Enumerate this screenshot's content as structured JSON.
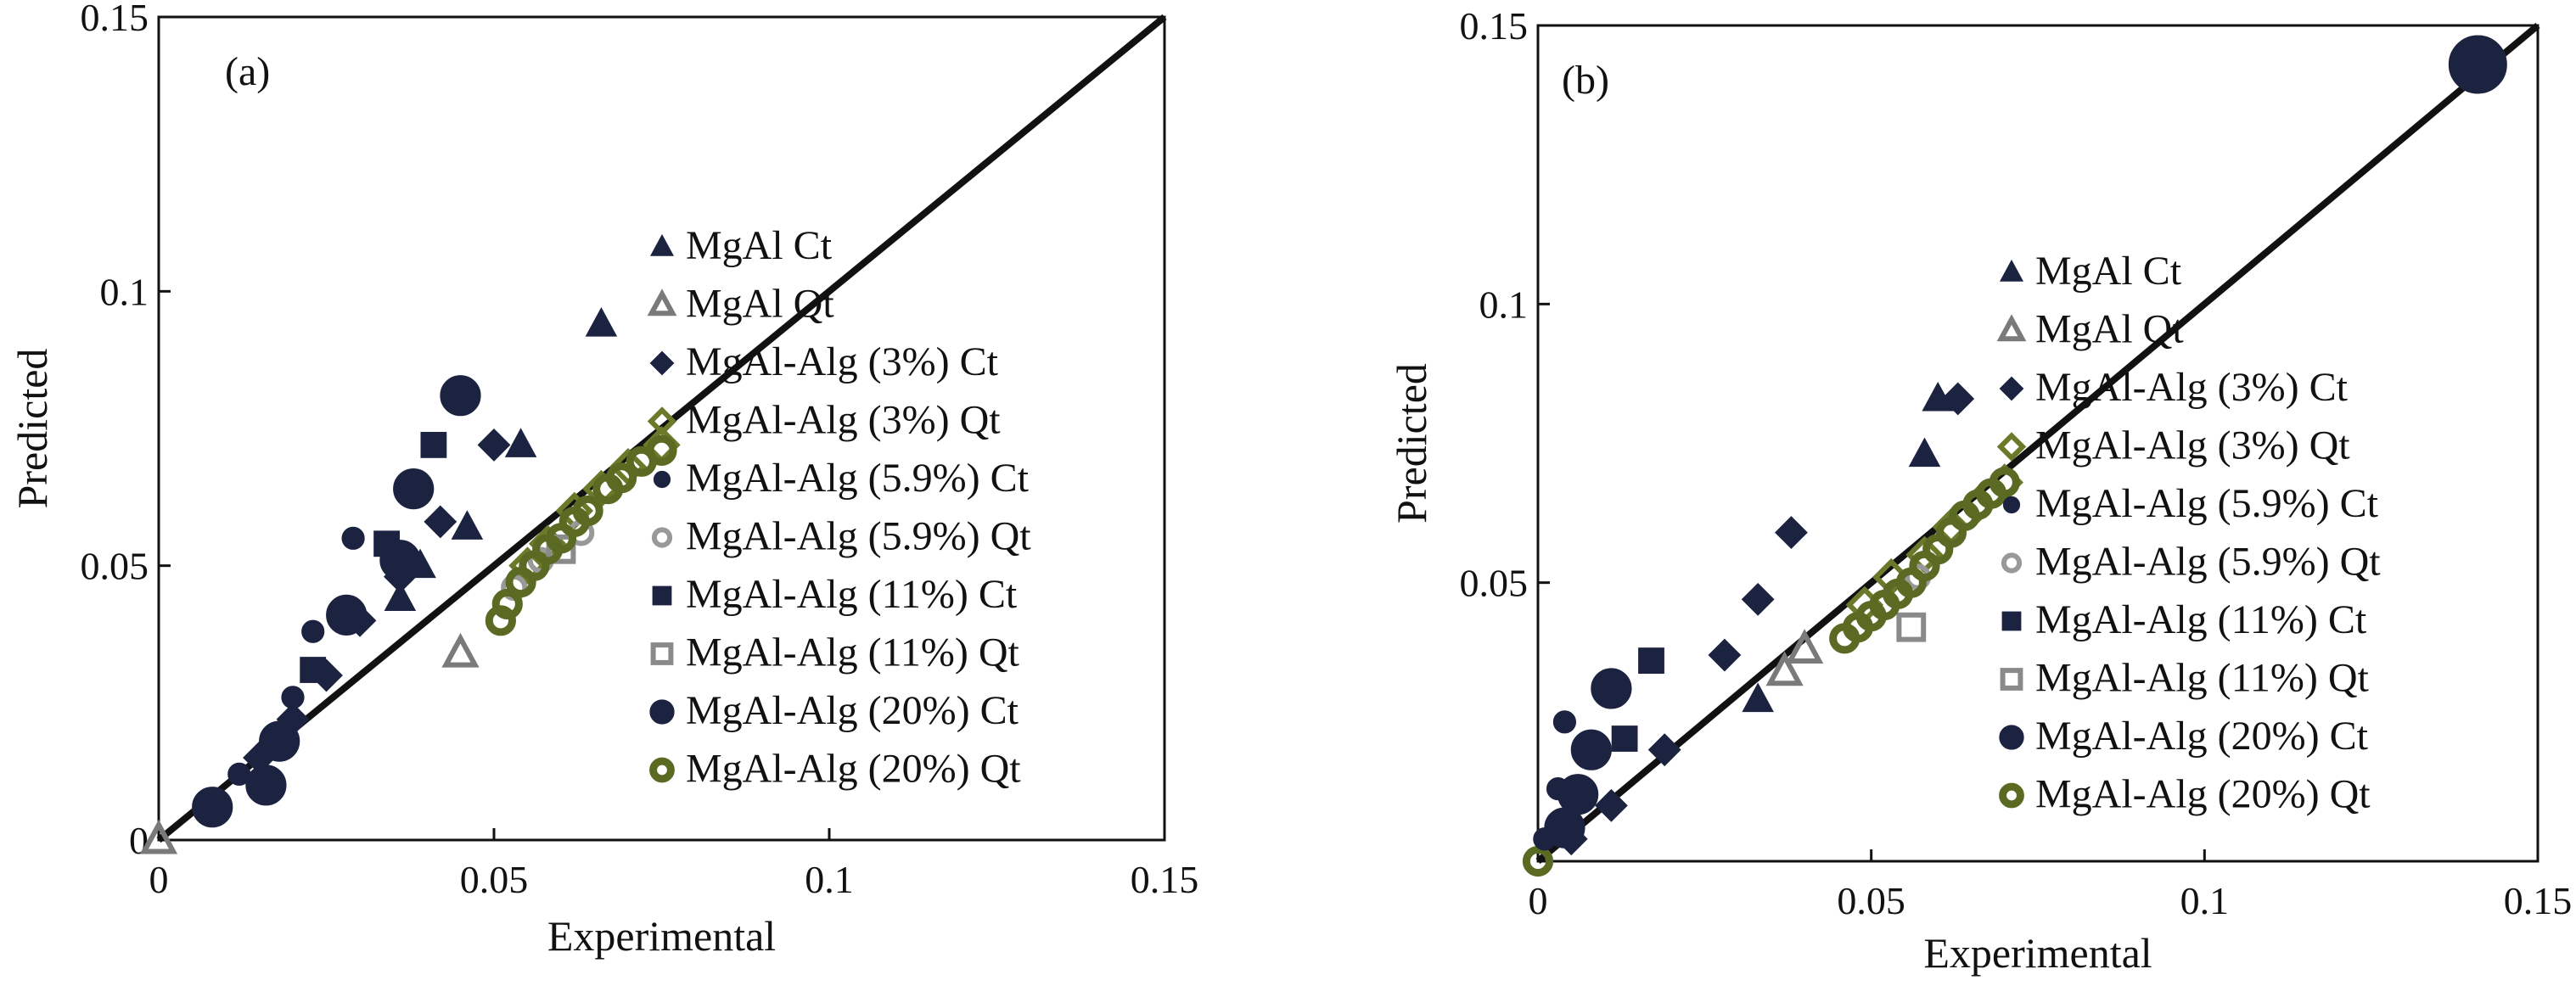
{
  "chart_data": [
    {
      "type": "scatter",
      "panel_label": "(a)",
      "xlabel": "Experimental",
      "ylabel": "Predicted",
      "xlim": [
        0,
        0.15
      ],
      "ylim": [
        0,
        0.15
      ],
      "x_ticks": [
        "0",
        "0.05",
        "0.1",
        "0.15"
      ],
      "y_ticks": [
        "0",
        "0.05",
        "0.1",
        "0.15"
      ],
      "grid": false,
      "legend_position": "center-right",
      "reference_line": "y = x",
      "series": [
        {
          "name": "MgAl Ct",
          "marker": "triangle",
          "filled": true,
          "color": "#1c2340",
          "points": [
            [
              0.066,
              0.094
            ],
            [
              0.054,
              0.072
            ],
            [
              0.046,
              0.057
            ],
            [
              0.039,
              0.05
            ],
            [
              0.036,
              0.044
            ]
          ]
        },
        {
          "name": "MgAl Qt",
          "marker": "triangle",
          "filled": false,
          "color": "#7a7a7a",
          "points": [
            [
              0.045,
              0.034
            ],
            [
              0.0,
              0.0
            ]
          ]
        },
        {
          "name": "MgAl-Alg (3%) Ct",
          "marker": "diamond",
          "filled": true,
          "color": "#1c2340",
          "points": [
            [
              0.05,
              0.072
            ],
            [
              0.042,
              0.058
            ],
            [
              0.036,
              0.048
            ],
            [
              0.03,
              0.04
            ],
            [
              0.025,
              0.03
            ],
            [
              0.02,
              0.022
            ],
            [
              0.015,
              0.015
            ]
          ]
        },
        {
          "name": "MgAl-Alg (3%) Qt",
          "marker": "diamond",
          "filled": false,
          "color": "#6b7a2a",
          "points": [
            [
              0.075,
              0.072
            ],
            [
              0.07,
              0.068
            ],
            [
              0.066,
              0.064
            ],
            [
              0.062,
              0.06
            ],
            [
              0.058,
              0.054
            ],
            [
              0.055,
              0.05
            ]
          ]
        },
        {
          "name": "MgAl-Alg (5.9%) Ct",
          "marker": "circle-small",
          "filled": true,
          "color": "#1c2340",
          "points": [
            [
              0.029,
              0.055
            ],
            [
              0.023,
              0.038
            ],
            [
              0.02,
              0.026
            ],
            [
              0.012,
              0.012
            ],
            [
              0.007,
              0.005
            ]
          ]
        },
        {
          "name": "MgAl-Alg (5.9%) Qt",
          "marker": "circle-small",
          "filled": false,
          "color": "#999999",
          "points": [
            [
              0.063,
              0.056
            ],
            [
              0.057,
              0.051
            ],
            [
              0.053,
              0.046
            ]
          ]
        },
        {
          "name": "MgAl-Alg (11%) Ct",
          "marker": "square",
          "filled": true,
          "color": "#1c2340",
          "points": [
            [
              0.041,
              0.072
            ],
            [
              0.034,
              0.054
            ],
            [
              0.023,
              0.031
            ]
          ]
        },
        {
          "name": "MgAl-Alg (11%) Qt",
          "marker": "square",
          "filled": false,
          "color": "#8a8a8a",
          "points": [
            [
              0.06,
              0.053
            ]
          ]
        },
        {
          "name": "MgAl-Alg (20%) Ct",
          "marker": "circle",
          "filled": true,
          "color": "#1c2340",
          "points": [
            [
              0.045,
              0.081
            ],
            [
              0.038,
              0.064
            ],
            [
              0.036,
              0.051
            ],
            [
              0.028,
              0.041
            ],
            [
              0.018,
              0.018
            ],
            [
              0.016,
              0.01
            ],
            [
              0.008,
              0.006
            ]
          ]
        },
        {
          "name": "MgAl-Alg (20%) Qt",
          "marker": "ring",
          "filled": false,
          "color": "#5a6a22",
          "points": [
            [
              0.075,
              0.071
            ],
            [
              0.072,
              0.069
            ],
            [
              0.069,
              0.066
            ],
            [
              0.067,
              0.064
            ],
            [
              0.064,
              0.06
            ],
            [
              0.062,
              0.058
            ],
            [
              0.06,
              0.055
            ],
            [
              0.058,
              0.053
            ],
            [
              0.056,
              0.05
            ],
            [
              0.054,
              0.047
            ],
            [
              0.052,
              0.043
            ],
            [
              0.051,
              0.04
            ]
          ]
        }
      ]
    },
    {
      "type": "scatter",
      "panel_label": "(b)",
      "xlabel": "Experimental",
      "ylabel": "Predicted",
      "xlim": [
        0,
        0.15
      ],
      "ylim": [
        0,
        0.15
      ],
      "x_ticks": [
        "0",
        "0.05",
        "0.1",
        "0.15"
      ],
      "y_ticks": [
        "0.05",
        "0.1",
        "0.15"
      ],
      "grid": false,
      "legend_position": "center-right",
      "reference_line": "y = x",
      "series": [
        {
          "name": "MgAl Ct",
          "marker": "triangle",
          "filled": true,
          "color": "#1c2340",
          "points": [
            [
              0.06,
              0.083
            ],
            [
              0.058,
              0.073
            ],
            [
              0.033,
              0.029
            ]
          ]
        },
        {
          "name": "MgAl Qt",
          "marker": "triangle",
          "filled": false,
          "color": "#7a7a7a",
          "points": [
            [
              0.04,
              0.038
            ],
            [
              0.037,
              0.034
            ]
          ]
        },
        {
          "name": "MgAl-Alg (3%) Ct",
          "marker": "diamond",
          "filled": true,
          "color": "#1c2340",
          "points": [
            [
              0.063,
              0.083
            ],
            [
              0.038,
              0.059
            ],
            [
              0.033,
              0.047
            ],
            [
              0.028,
              0.037
            ],
            [
              0.019,
              0.02
            ],
            [
              0.011,
              0.01
            ],
            [
              0.005,
              0.004
            ]
          ]
        },
        {
          "name": "MgAl-Alg (3%) Qt",
          "marker": "diamond",
          "filled": false,
          "color": "#6b7a2a",
          "points": [
            [
              0.07,
              0.068
            ],
            [
              0.066,
              0.064
            ],
            [
              0.062,
              0.06
            ],
            [
              0.058,
              0.055
            ],
            [
              0.053,
              0.051
            ],
            [
              0.049,
              0.046
            ]
          ]
        },
        {
          "name": "MgAl-Alg (5.9%) Ct",
          "marker": "circle-small",
          "filled": true,
          "color": "#1c2340",
          "points": [
            [
              0.004,
              0.025
            ],
            [
              0.003,
              0.013
            ],
            [
              0.001,
              0.004
            ]
          ]
        },
        {
          "name": "MgAl-Alg (5.9%) Qt",
          "marker": "circle-small",
          "filled": false,
          "color": "#999999",
          "points": [
            [
              0.06,
              0.056
            ],
            [
              0.057,
              0.051
            ]
          ]
        },
        {
          "name": "MgAl-Alg (11%) Ct",
          "marker": "square",
          "filled": true,
          "color": "#1c2340",
          "points": [
            [
              0.017,
              0.036
            ],
            [
              0.013,
              0.022
            ]
          ]
        },
        {
          "name": "MgAl-Alg (11%) Qt",
          "marker": "square",
          "filled": false,
          "color": "#8a8a8a",
          "points": [
            [
              0.056,
              0.042
            ]
          ]
        },
        {
          "name": "MgAl-Alg (20%) Ct",
          "marker": "circle",
          "filled": true,
          "color": "#1c2340",
          "points": [
            [
              0.141,
              0.143
            ],
            [
              0.011,
              0.031
            ],
            [
              0.008,
              0.02
            ],
            [
              0.006,
              0.012
            ],
            [
              0.004,
              0.006
            ]
          ]
        },
        {
          "name": "MgAl-Alg (20%) Qt",
          "marker": "ring",
          "filled": false,
          "color": "#5a6a22",
          "points": [
            [
              0.07,
              0.068
            ],
            [
              0.068,
              0.066
            ],
            [
              0.066,
              0.064
            ],
            [
              0.064,
              0.062
            ],
            [
              0.062,
              0.059
            ],
            [
              0.06,
              0.056
            ],
            [
              0.058,
              0.053
            ],
            [
              0.056,
              0.05
            ],
            [
              0.054,
              0.048
            ],
            [
              0.052,
              0.046
            ],
            [
              0.05,
              0.044
            ],
            [
              0.048,
              0.042
            ],
            [
              0.046,
              0.04
            ],
            [
              0.0,
              0.0
            ]
          ]
        }
      ]
    }
  ]
}
